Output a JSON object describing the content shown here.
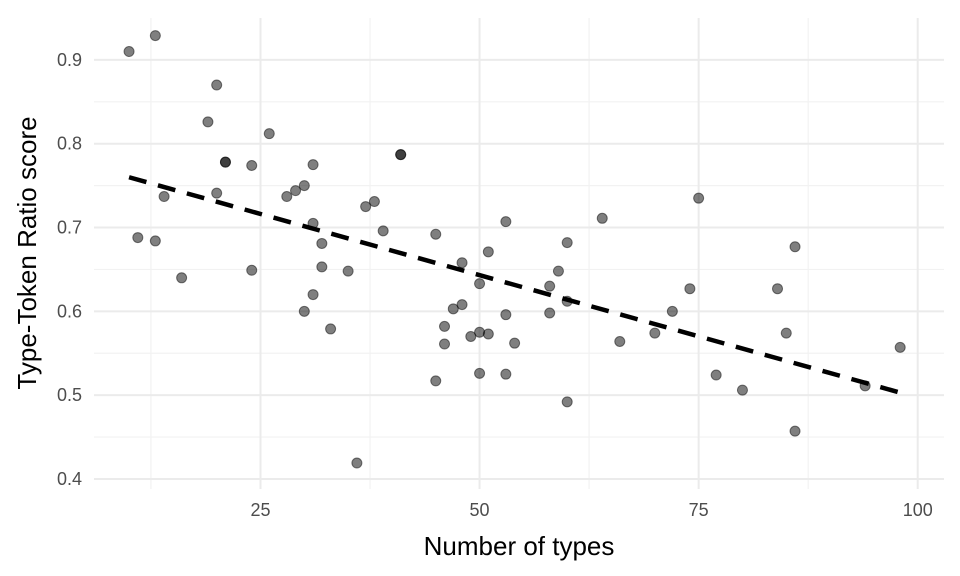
{
  "chart_data": {
    "type": "scatter",
    "xlabel": "Number of types",
    "ylabel": "Type-Token Ratio score",
    "xlim": [
      6,
      103
    ],
    "ylim": [
      0.388,
      0.95
    ],
    "x_ticks": [
      25,
      50,
      75,
      100
    ],
    "x_tick_labels": [
      "25",
      "50",
      "75",
      "100"
    ],
    "y_ticks": [
      0.4,
      0.5,
      0.6,
      0.7,
      0.8,
      0.9
    ],
    "y_tick_labels": [
      "0.4",
      "0.5",
      "0.6",
      "0.7",
      "0.8",
      "0.9"
    ],
    "grid": true,
    "point_color": "#000000",
    "trend_line": {
      "style": "dashed",
      "color": "#000000",
      "x": [
        10,
        98
      ],
      "y": [
        0.76,
        0.503
      ]
    },
    "points": [
      {
        "x": 10,
        "y": 0.91
      },
      {
        "x": 11,
        "y": 0.688
      },
      {
        "x": 13,
        "y": 0.929
      },
      {
        "x": 13,
        "y": 0.684
      },
      {
        "x": 14,
        "y": 0.737
      },
      {
        "x": 16,
        "y": 0.64
      },
      {
        "x": 19,
        "y": 0.826
      },
      {
        "x": 20,
        "y": 0.87
      },
      {
        "x": 20,
        "y": 0.741
      },
      {
        "x": 21,
        "y": 0.778
      },
      {
        "x": 21,
        "y": 0.778
      },
      {
        "x": 24,
        "y": 0.774
      },
      {
        "x": 24,
        "y": 0.649
      },
      {
        "x": 26,
        "y": 0.812
      },
      {
        "x": 28,
        "y": 0.737
      },
      {
        "x": 29,
        "y": 0.744
      },
      {
        "x": 30,
        "y": 0.75
      },
      {
        "x": 30,
        "y": 0.6
      },
      {
        "x": 31,
        "y": 0.775
      },
      {
        "x": 31,
        "y": 0.705
      },
      {
        "x": 31,
        "y": 0.62
      },
      {
        "x": 32,
        "y": 0.681
      },
      {
        "x": 32,
        "y": 0.653
      },
      {
        "x": 33,
        "y": 0.579
      },
      {
        "x": 35,
        "y": 0.648
      },
      {
        "x": 36,
        "y": 0.419
      },
      {
        "x": 37,
        "y": 0.725
      },
      {
        "x": 38,
        "y": 0.731
      },
      {
        "x": 39,
        "y": 0.696
      },
      {
        "x": 41,
        "y": 0.787
      },
      {
        "x": 41,
        "y": 0.787
      },
      {
        "x": 45,
        "y": 0.692
      },
      {
        "x": 45,
        "y": 0.517
      },
      {
        "x": 46,
        "y": 0.582
      },
      {
        "x": 46,
        "y": 0.561
      },
      {
        "x": 47,
        "y": 0.603
      },
      {
        "x": 48,
        "y": 0.658
      },
      {
        "x": 48,
        "y": 0.608
      },
      {
        "x": 49,
        "y": 0.57
      },
      {
        "x": 50,
        "y": 0.633
      },
      {
        "x": 50,
        "y": 0.575
      },
      {
        "x": 50,
        "y": 0.526
      },
      {
        "x": 51,
        "y": 0.671
      },
      {
        "x": 51,
        "y": 0.573
      },
      {
        "x": 53,
        "y": 0.707
      },
      {
        "x": 53,
        "y": 0.596
      },
      {
        "x": 53,
        "y": 0.525
      },
      {
        "x": 54,
        "y": 0.562
      },
      {
        "x": 58,
        "y": 0.63
      },
      {
        "x": 58,
        "y": 0.598
      },
      {
        "x": 59,
        "y": 0.648
      },
      {
        "x": 60,
        "y": 0.682
      },
      {
        "x": 60,
        "y": 0.612
      },
      {
        "x": 60,
        "y": 0.492
      },
      {
        "x": 64,
        "y": 0.711
      },
      {
        "x": 66,
        "y": 0.564
      },
      {
        "x": 70,
        "y": 0.574
      },
      {
        "x": 72,
        "y": 0.6
      },
      {
        "x": 74,
        "y": 0.627
      },
      {
        "x": 75,
        "y": 0.735
      },
      {
        "x": 77,
        "y": 0.524
      },
      {
        "x": 80,
        "y": 0.506
      },
      {
        "x": 84,
        "y": 0.627
      },
      {
        "x": 85,
        "y": 0.574
      },
      {
        "x": 86,
        "y": 0.677
      },
      {
        "x": 86,
        "y": 0.457
      },
      {
        "x": 94,
        "y": 0.511
      },
      {
        "x": 98,
        "y": 0.557
      }
    ]
  }
}
